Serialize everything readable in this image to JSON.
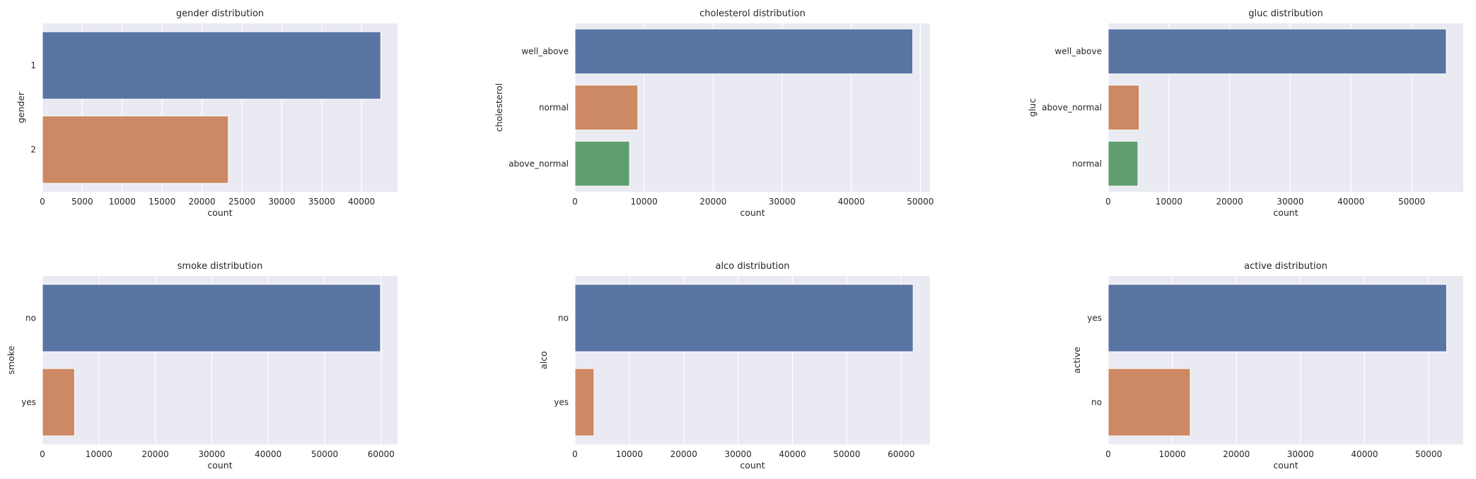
{
  "palette": {
    "background": "#EAEAF2",
    "grid": "#FFFFFF",
    "bar_colors": [
      "#5875A4",
      "#CC8963",
      "#5F9E6E"
    ]
  },
  "chart_data": [
    {
      "type": "bar",
      "orientation": "horizontal",
      "title": "gender distribution",
      "xlabel": "count",
      "ylabel": "gender",
      "categories": [
        "1",
        "2"
      ],
      "values": [
        42400,
        23300
      ],
      "xlim": [
        0,
        44500
      ],
      "xticks": [
        0,
        5000,
        10000,
        15000,
        20000,
        25000,
        30000,
        35000,
        40000
      ],
      "grid": true
    },
    {
      "type": "bar",
      "orientation": "horizontal",
      "title": "cholesterol distribution",
      "xlabel": "count",
      "ylabel": "cholesterol",
      "categories": [
        "well_above",
        "normal",
        "above_normal"
      ],
      "values": [
        48900,
        9100,
        7900
      ],
      "xlim": [
        0,
        51400
      ],
      "xticks": [
        0,
        10000,
        20000,
        30000,
        40000,
        50000
      ],
      "grid": true
    },
    {
      "type": "bar",
      "orientation": "horizontal",
      "title": "gluc distribution",
      "xlabel": "count",
      "ylabel": "gluc",
      "categories": [
        "well_above",
        "above_normal",
        "normal"
      ],
      "values": [
        55700,
        5100,
        4900
      ],
      "xlim": [
        0,
        58500
      ],
      "xticks": [
        0,
        10000,
        20000,
        30000,
        40000,
        50000
      ],
      "grid": true
    },
    {
      "type": "bar",
      "orientation": "horizontal",
      "title": "smoke distribution",
      "xlabel": "count",
      "ylabel": "smoke",
      "categories": [
        "no",
        "yes"
      ],
      "values": [
        59900,
        5700
      ],
      "xlim": [
        0,
        62900
      ],
      "xticks": [
        0,
        10000,
        20000,
        30000,
        40000,
        50000,
        60000
      ],
      "grid": true
    },
    {
      "type": "bar",
      "orientation": "horizontal",
      "title": "alco distribution",
      "xlabel": "count",
      "ylabel": "alco",
      "categories": [
        "no",
        "yes"
      ],
      "values": [
        62200,
        3500
      ],
      "xlim": [
        0,
        65300
      ],
      "xticks": [
        0,
        10000,
        20000,
        30000,
        40000,
        50000,
        60000
      ],
      "grid": true
    },
    {
      "type": "bar",
      "orientation": "horizontal",
      "title": "active distribution",
      "xlabel": "count",
      "ylabel": "active",
      "categories": [
        "yes",
        "no"
      ],
      "values": [
        52800,
        12800
      ],
      "xlim": [
        0,
        55400
      ],
      "xticks": [
        0,
        10000,
        20000,
        30000,
        40000,
        50000
      ],
      "grid": true
    }
  ]
}
